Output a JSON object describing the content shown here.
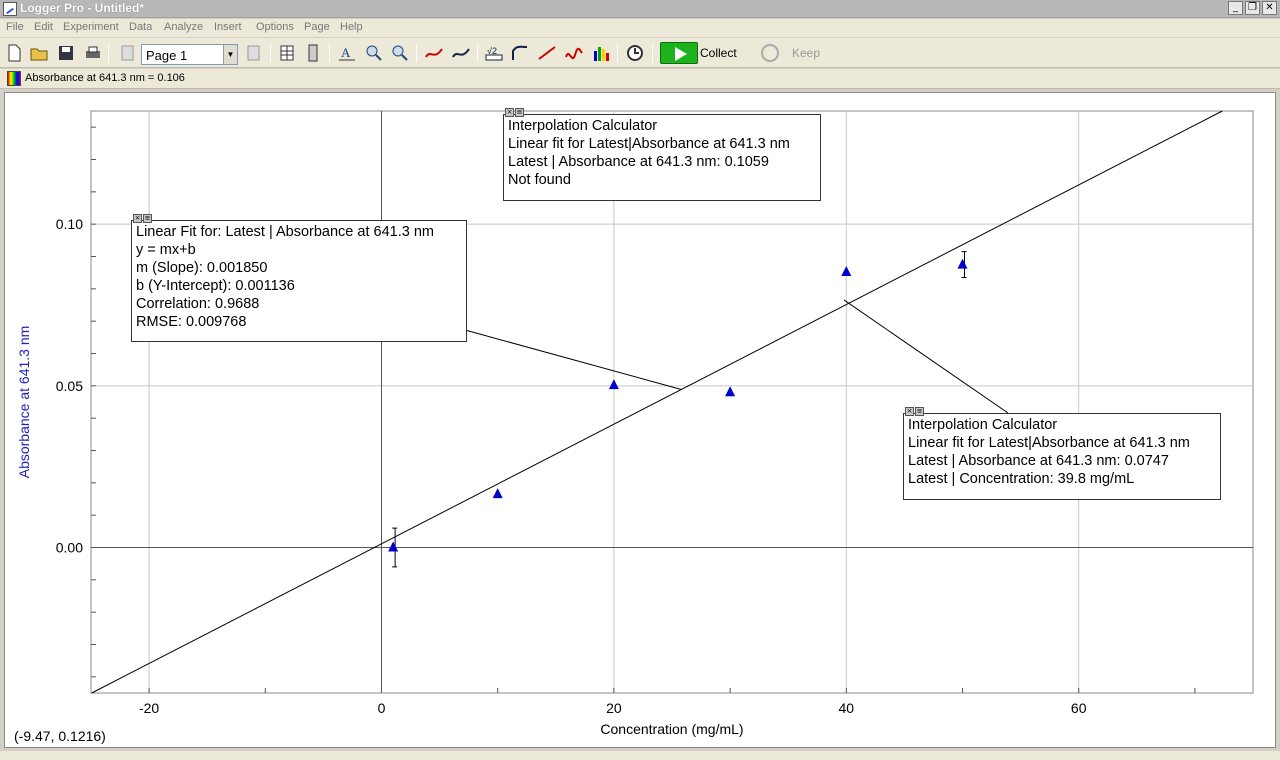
{
  "window": {
    "title": "Logger Pro - Untitled*"
  },
  "menu": [
    "File",
    "Edit",
    "Experiment",
    "Data",
    "Analyze",
    "Insert",
    "Options",
    "Page",
    "Help"
  ],
  "toolbar": {
    "page_select": "Page 1",
    "collect_label": "Collect",
    "keep_label": "Keep"
  },
  "meter": {
    "text": "Absorbance at 641.3 nm  =  0.106"
  },
  "chart_data": {
    "type": "scatter",
    "xlabel": "Concentration (mg/mL)",
    "ylabel": "Absorbance at 641.3 nm",
    "xlim": [
      -25,
      75
    ],
    "ylim": [
      -0.045,
      0.135
    ],
    "xticks": [
      -20,
      0,
      20,
      40,
      60
    ],
    "xtick_labels": [
      "-20",
      "0",
      "20",
      "40",
      "60"
    ],
    "yticks": [
      0.0,
      0.05,
      0.1
    ],
    "ytick_labels": [
      "0.00",
      "0.05",
      "0.10"
    ],
    "grid": true,
    "series": [
      {
        "points": [
          {
            "x": 1,
            "y": 0.0
          },
          {
            "x": 10,
            "y": 0.0165
          },
          {
            "x": 20,
            "y": 0.0502
          },
          {
            "x": 30,
            "y": 0.048
          },
          {
            "x": 40,
            "y": 0.0852
          },
          {
            "x": 50,
            "y": 0.0875
          }
        ],
        "color": "#0000cc"
      }
    ],
    "fit": {
      "m": 0.00185,
      "b": 0.001136
    },
    "cursor_readout": "(-9.47, 0.1216)"
  },
  "annotations": {
    "interp_top": [
      "Interpolation Calculator",
      "Linear fit for Latest|Absorbance at 641.3 nm",
      "Latest | Absorbance at 641.3 nm: 0.1059",
      "Not found"
    ],
    "linear_fit": [
      "Linear Fit for: Latest | Absorbance at 641.3 nm",
      "y = mx+b",
      "m (Slope): 0.001850",
      "b (Y-Intercept): 0.001136",
      "Correlation: 0.9688",
      "RMSE: 0.009768"
    ],
    "interp_bottom": [
      "Interpolation Calculator",
      "Linear fit for Latest|Absorbance at 641.3 nm",
      "Latest | Absorbance at 641.3 nm: 0.0747",
      "Latest | Concentration: 39.8 mg/mL"
    ]
  },
  "annotation_ctrl": {
    "close": "×",
    "menu": "≡"
  }
}
